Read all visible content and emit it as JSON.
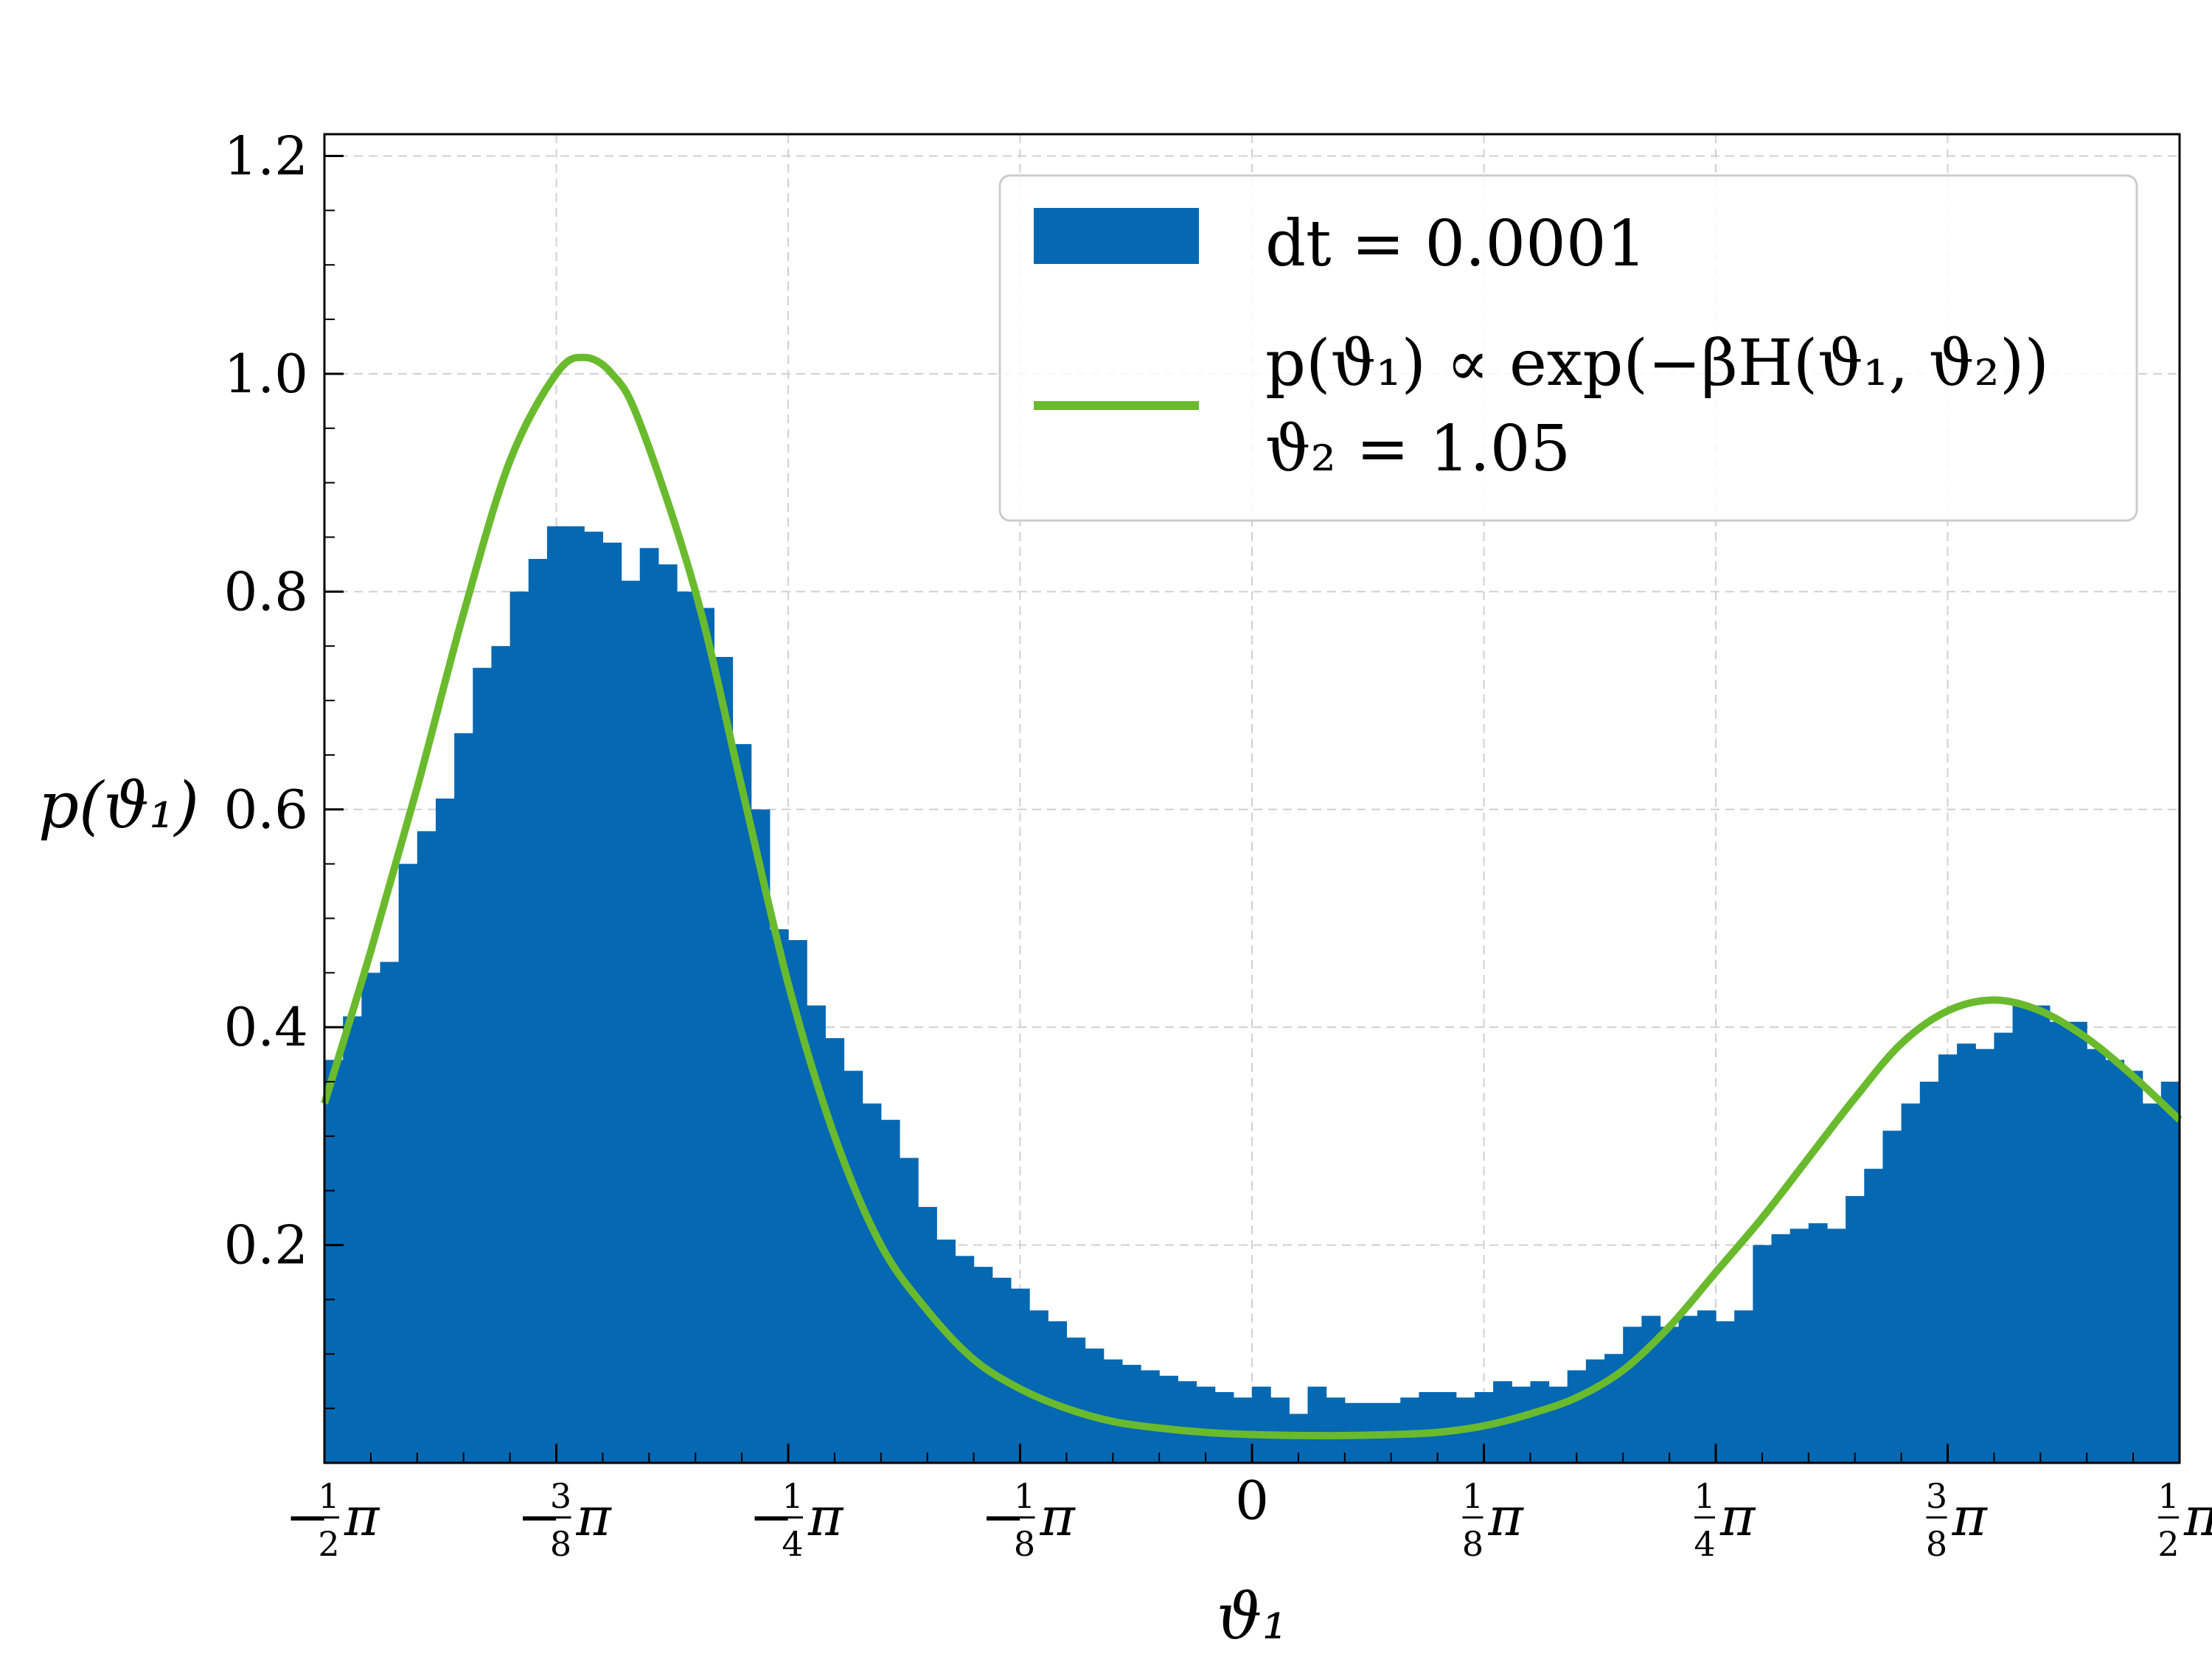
{
  "chart_data": {
    "type": "bar",
    "xlabel": "ϑ₁",
    "ylabel": "p(ϑ₁)",
    "xlim_in_pi": [
      -0.5,
      0.5
    ],
    "ylim": [
      0,
      1.22
    ],
    "grid": true,
    "legend_placement": "top-right",
    "x_ticks": [
      {
        "value_in_pi": -0.5,
        "sign": "−",
        "num": "1",
        "den": "2",
        "suffix": "π"
      },
      {
        "value_in_pi": -0.375,
        "sign": "−",
        "num": "3",
        "den": "8",
        "suffix": "π"
      },
      {
        "value_in_pi": -0.25,
        "sign": "−",
        "num": "1",
        "den": "4",
        "suffix": "π"
      },
      {
        "value_in_pi": -0.125,
        "sign": "−",
        "num": "1",
        "den": "8",
        "suffix": "π"
      },
      {
        "value_in_pi": 0,
        "plain": "0"
      },
      {
        "value_in_pi": 0.125,
        "sign": "",
        "num": "1",
        "den": "8",
        "suffix": "π"
      },
      {
        "value_in_pi": 0.25,
        "sign": "",
        "num": "1",
        "den": "4",
        "suffix": "π"
      },
      {
        "value_in_pi": 0.375,
        "sign": "",
        "num": "3",
        "den": "8",
        "suffix": "π"
      },
      {
        "value_in_pi": 0.5,
        "sign": "",
        "num": "1",
        "den": "2",
        "suffix": "π"
      }
    ],
    "y_ticks": [
      {
        "value": 0.2,
        "label": "0.2"
      },
      {
        "value": 0.4,
        "label": "0.4"
      },
      {
        "value": 0.6,
        "label": "0.6"
      },
      {
        "value": 0.8,
        "label": "0.8"
      },
      {
        "value": 1.0,
        "label": "1.0"
      },
      {
        "value": 1.2,
        "label": "1.2"
      }
    ],
    "histogram": {
      "name": "dt = 0.0001",
      "color": "#0468b2",
      "bin_range_in_pi": [
        -0.5,
        0.5
      ],
      "values": [
        0.37,
        0.41,
        0.45,
        0.46,
        0.55,
        0.58,
        0.61,
        0.67,
        0.73,
        0.75,
        0.8,
        0.83,
        0.86,
        0.86,
        0.855,
        0.845,
        0.81,
        0.84,
        0.825,
        0.8,
        0.785,
        0.74,
        0.66,
        0.6,
        0.49,
        0.48,
        0.42,
        0.39,
        0.36,
        0.33,
        0.315,
        0.28,
        0.235,
        0.205,
        0.19,
        0.18,
        0.17,
        0.16,
        0.14,
        0.13,
        0.115,
        0.105,
        0.095,
        0.09,
        0.085,
        0.08,
        0.075,
        0.07,
        0.065,
        0.06,
        0.07,
        0.06,
        0.045,
        0.07,
        0.06,
        0.055,
        0.055,
        0.055,
        0.06,
        0.065,
        0.065,
        0.06,
        0.065,
        0.075,
        0.07,
        0.075,
        0.07,
        0.085,
        0.095,
        0.1,
        0.125,
        0.135,
        0.125,
        0.135,
        0.14,
        0.13,
        0.14,
        0.2,
        0.21,
        0.215,
        0.22,
        0.215,
        0.245,
        0.27,
        0.305,
        0.33,
        0.35,
        0.375,
        0.385,
        0.38,
        0.395,
        0.42,
        0.42,
        0.405,
        0.405,
        0.38,
        0.37,
        0.36,
        0.33,
        0.35
      ]
    },
    "series": [
      {
        "name": "p(ϑ₁) ∝ exp(−βH(ϑ₁, ϑ₂)), ϑ₂ = 1.05",
        "color": "#6aba2e",
        "x_in_pi": [
          -0.5,
          -0.475,
          -0.45,
          -0.425,
          -0.4,
          -0.375,
          -0.36,
          -0.345,
          -0.33,
          -0.3,
          -0.275,
          -0.25,
          -0.225,
          -0.2,
          -0.175,
          -0.15,
          -0.125,
          -0.1,
          -0.075,
          -0.05,
          -0.025,
          0,
          0.04,
          0.075,
          0.1,
          0.125,
          0.15,
          0.175,
          0.2,
          0.225,
          0.25,
          0.275,
          0.3,
          0.325,
          0.35,
          0.375,
          0.4,
          0.425,
          0.45,
          0.475,
          0.5
        ],
        "y": [
          0.33,
          0.47,
          0.62,
          0.78,
          0.92,
          1.0,
          1.015,
          1.0,
          0.955,
          0.8,
          0.62,
          0.44,
          0.3,
          0.2,
          0.14,
          0.095,
          0.068,
          0.05,
          0.038,
          0.032,
          0.028,
          0.026,
          0.025,
          0.026,
          0.028,
          0.034,
          0.045,
          0.06,
          0.085,
          0.125,
          0.175,
          0.225,
          0.28,
          0.335,
          0.385,
          0.415,
          0.425,
          0.415,
          0.39,
          0.355,
          0.315
        ]
      }
    ]
  },
  "legend": {
    "hist_label": "dt = 0.0001",
    "curve_label_line1": "p(ϑ₁) ∝ exp(−βH(ϑ₁, ϑ₂))",
    "curve_label_line2": "ϑ₂ = 1.05"
  }
}
